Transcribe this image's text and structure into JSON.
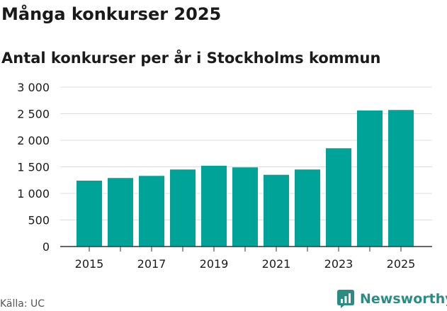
{
  "title": "Många konkurser 2025",
  "subtitle": "Antal konkurser per år i Stockholms kommun",
  "source": "Källa: UC",
  "brand": {
    "name": "Newsworthy",
    "logo_icon": "newsworthy-logo-icon"
  },
  "colors": {
    "bar": "#00a398",
    "grid": "#dcdcdc",
    "axis": "#333333",
    "text": "#1a1a1a",
    "brand": "#2a8d83"
  },
  "chart_data": {
    "type": "bar",
    "title": "Antal konkurser per år i Stockholms kommun",
    "xlabel": "",
    "ylabel": "",
    "categories": [
      "2015",
      "2016",
      "2017",
      "2018",
      "2019",
      "2020",
      "2021",
      "2022",
      "2023",
      "2024",
      "2025"
    ],
    "values": [
      1240,
      1290,
      1330,
      1450,
      1520,
      1490,
      1350,
      1450,
      1850,
      2560,
      2570
    ],
    "ylim": [
      0,
      3000
    ],
    "yticks": [
      0,
      500,
      1000,
      1500,
      2000,
      2500,
      3000
    ],
    "ytick_labels": [
      "0",
      "500",
      "1 000",
      "1 500",
      "2 000",
      "2 500",
      "3 000"
    ],
    "xtick_labels": [
      "2015",
      "",
      "2017",
      "",
      "2019",
      "",
      "2021",
      "",
      "2023",
      "",
      "2025"
    ],
    "grid": true,
    "legend": "none"
  }
}
